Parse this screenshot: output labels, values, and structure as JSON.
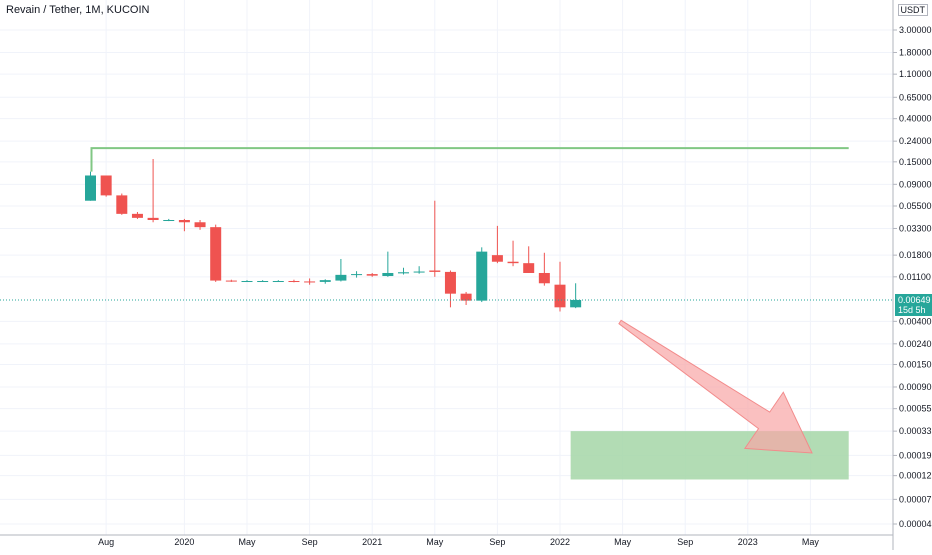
{
  "chart_data": {
    "type": "candlestick",
    "title": "Revain / Tether, 1M, KUCOIN",
    "currency": "USDT",
    "y_scale": "log",
    "colors": {
      "up": "#26a69a",
      "down": "#ef5350",
      "resistance": "#81c784",
      "target_zone": "#a5d6a7",
      "arrow": "#f8a5a5"
    },
    "y_ticks": [
      "3.00000",
      "1.80000",
      "1.10000",
      "0.65000",
      "0.40000",
      "0.24000",
      "0.15000",
      "0.09000",
      "0.05500",
      "0.03300",
      "0.01800",
      "0.01100",
      "0.00400",
      "0.00240",
      "0.00150",
      "0.00090",
      "0.00055",
      "0.00033",
      "0.00019",
      "0.00012",
      "0.00007",
      "0.00004"
    ],
    "x_ticks": [
      "Aug",
      "2020",
      "May",
      "Sep",
      "2021",
      "May",
      "Sep",
      "2022",
      "May",
      "Sep",
      "2023",
      "May"
    ],
    "last_price": {
      "value": "0.00649",
      "countdown": "15d 5h"
    },
    "candles": [
      {
        "date": "2019-07",
        "open": 0.062,
        "high": 0.12,
        "low": 0.062,
        "close": 0.11
      },
      {
        "date": "2019-08",
        "open": 0.11,
        "high": 0.11,
        "low": 0.068,
        "close": 0.07
      },
      {
        "date": "2019-09",
        "open": 0.07,
        "high": 0.073,
        "low": 0.045,
        "close": 0.046
      },
      {
        "date": "2019-10",
        "open": 0.046,
        "high": 0.048,
        "low": 0.041,
        "close": 0.042
      },
      {
        "date": "2019-11",
        "open": 0.042,
        "high": 0.16,
        "low": 0.038,
        "close": 0.04
      },
      {
        "date": "2019-12",
        "open": 0.04,
        "high": 0.041,
        "low": 0.039,
        "close": 0.04
      },
      {
        "date": "2020-01",
        "open": 0.04,
        "high": 0.041,
        "low": 0.031,
        "close": 0.038
      },
      {
        "date": "2020-02",
        "open": 0.038,
        "high": 0.04,
        "low": 0.032,
        "close": 0.034
      },
      {
        "date": "2020-03",
        "open": 0.034,
        "high": 0.036,
        "low": 0.0098,
        "close": 0.0101
      },
      {
        "date": "2020-04",
        "open": 0.0101,
        "high": 0.0103,
        "low": 0.0098,
        "close": 0.01
      },
      {
        "date": "2020-05",
        "open": 0.01,
        "high": 0.0102,
        "low": 0.0098,
        "close": 0.01
      },
      {
        "date": "2020-06",
        "open": 0.01,
        "high": 0.0102,
        "low": 0.0098,
        "close": 0.01
      },
      {
        "date": "2020-07",
        "open": 0.01,
        "high": 0.0102,
        "low": 0.0098,
        "close": 0.01
      },
      {
        "date": "2020-08",
        "open": 0.01,
        "high": 0.0103,
        "low": 0.0097,
        "close": 0.0099
      },
      {
        "date": "2020-09",
        "open": 0.0099,
        "high": 0.0106,
        "low": 0.0092,
        "close": 0.0098
      },
      {
        "date": "2020-10",
        "open": 0.0098,
        "high": 0.0104,
        "low": 0.0094,
        "close": 0.0102
      },
      {
        "date": "2020-11",
        "open": 0.0101,
        "high": 0.0165,
        "low": 0.0099,
        "close": 0.0115
      },
      {
        "date": "2020-12",
        "open": 0.0115,
        "high": 0.0125,
        "low": 0.0108,
        "close": 0.0117
      },
      {
        "date": "2021-01",
        "open": 0.0117,
        "high": 0.012,
        "low": 0.011,
        "close": 0.0113
      },
      {
        "date": "2021-02",
        "open": 0.0112,
        "high": 0.0195,
        "low": 0.011,
        "close": 0.012
      },
      {
        "date": "2021-03",
        "open": 0.0119,
        "high": 0.0135,
        "low": 0.0116,
        "close": 0.0122
      },
      {
        "date": "2021-04",
        "open": 0.0122,
        "high": 0.014,
        "low": 0.0118,
        "close": 0.0124
      },
      {
        "date": "2021-05",
        "open": 0.0127,
        "high": 0.062,
        "low": 0.011,
        "close": 0.0123
      },
      {
        "date": "2021-06",
        "open": 0.0123,
        "high": 0.0127,
        "low": 0.0055,
        "close": 0.0075
      },
      {
        "date": "2021-07",
        "open": 0.0075,
        "high": 0.0078,
        "low": 0.0058,
        "close": 0.0064
      },
      {
        "date": "2021-08",
        "open": 0.0064,
        "high": 0.0215,
        "low": 0.0062,
        "close": 0.0195
      },
      {
        "date": "2021-09",
        "open": 0.018,
        "high": 0.035,
        "low": 0.015,
        "close": 0.0155
      },
      {
        "date": "2021-10",
        "open": 0.0155,
        "high": 0.025,
        "low": 0.014,
        "close": 0.015
      },
      {
        "date": "2021-11",
        "open": 0.015,
        "high": 0.022,
        "low": 0.012,
        "close": 0.012
      },
      {
        "date": "2021-12",
        "open": 0.012,
        "high": 0.019,
        "low": 0.009,
        "close": 0.0095
      },
      {
        "date": "2022-01",
        "open": 0.0092,
        "high": 0.0155,
        "low": 0.005,
        "close": 0.0055
      },
      {
        "date": "2022-02",
        "open": 0.0055,
        "high": 0.0095,
        "low": 0.0054,
        "close": 0.0065
      }
    ],
    "resistance_level": 0.205,
    "target_zone": {
      "from_date": "2022-02",
      "to_date": "2023-07",
      "top": 0.00033,
      "bottom": 0.00011
    }
  }
}
